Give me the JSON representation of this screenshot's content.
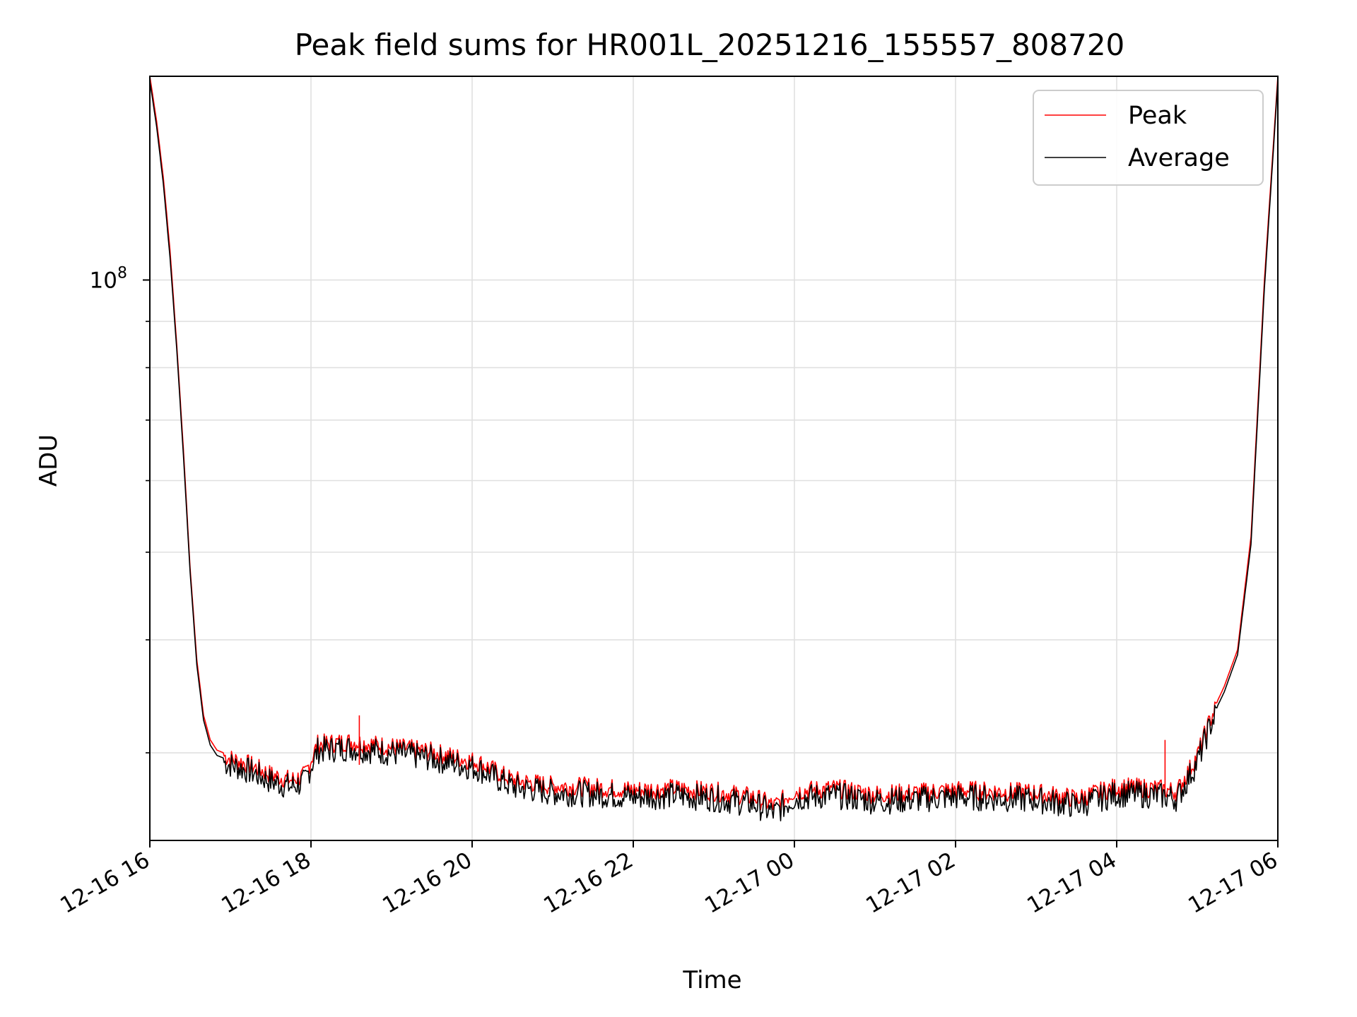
{
  "chart_data": {
    "type": "line",
    "title": "Peak field sums for HR001L_20251216_155557_808720",
    "xlabel": "Time",
    "ylabel": "ADU",
    "yscale": "log",
    "grid": true,
    "legend_position": "top-right",
    "xlim": [
      "12-16 16",
      "12-17 06"
    ],
    "ylim": [
      24000000,
      168000000
    ],
    "x_ticks": [
      "12-16 16",
      "12-16 18",
      "12-16 20",
      "12-16 22",
      "12-17 00",
      "12-17 02",
      "12-17 04",
      "12-17 06"
    ],
    "y_ticks": [
      {
        "value": 100000000,
        "base": "10",
        "exponent": "8"
      }
    ],
    "y_minor_ticks": [
      30000000,
      40000000,
      50000000,
      60000000,
      70000000,
      80000000,
      90000000,
      200000000
    ],
    "x": [
      "12-16 16",
      "12-16 16:05",
      "12-16 16:10",
      "12-16 16:15",
      "12-16 16:20",
      "12-16 16:25",
      "12-16 16:30",
      "12-16 16:35",
      "12-16 16:40",
      "12-16 16:45",
      "12-16 16:50",
      "12-16 17:00",
      "12-16 17:15",
      "12-16 17:30",
      "12-16 17:45",
      "12-16 17:55",
      "12-16 18:05",
      "12-16 18:30",
      "12-16 19:00",
      "12-16 19:30",
      "12-16 20:05",
      "12-16 20:30",
      "12-16 21:00",
      "12-16 21:30",
      "12-16 22:00",
      "12-16 22:30",
      "12-16 23:00",
      "12-16 23:30",
      "12-16 23:45",
      "12-17 00:00",
      "12-17 00:30",
      "12-17 01:00",
      "12-17 01:30",
      "12-17 02:00",
      "12-17 02:30",
      "12-17 03:00",
      "12-17 03:30",
      "12-17 04:00",
      "12-17 04:30",
      "12-17 04:45",
      "12-17 05:00",
      "12-17 05:10",
      "12-17 05:20",
      "12-17 05:30",
      "12-17 05:40",
      "12-17 05:50",
      "12-17 06"
    ],
    "series": [
      {
        "name": "Peak",
        "color": "#ff0000",
        "values": [
          168000000,
          150000000,
          130000000,
          108000000,
          85000000,
          65000000,
          48000000,
          38000000,
          33000000,
          31000000,
          30200000,
          29800000,
          29300000,
          28600000,
          28200000,
          28500000,
          30900000,
          31100000,
          30700000,
          30300000,
          29500000,
          28200000,
          27800000,
          27700000,
          27500000,
          27600000,
          27400000,
          27000000,
          26400000,
          27400000,
          27600000,
          27200000,
          27300000,
          27500000,
          27400000,
          27300000,
          26900000,
          27700000,
          27600000,
          27400000,
          30000000,
          33000000,
          35500000,
          39000000,
          52000000,
          100000000,
          168000000
        ]
      },
      {
        "name": "Average",
        "color": "#000000",
        "values": [
          166000000,
          148000000,
          128000000,
          106000000,
          84000000,
          64000000,
          47500000,
          37500000,
          32600000,
          30600000,
          29800000,
          29400000,
          28900000,
          28200000,
          27800000,
          28100000,
          30500000,
          30700000,
          30300000,
          29900000,
          29100000,
          27800000,
          27400000,
          27300000,
          27100000,
          27200000,
          27000000,
          26600000,
          26000000,
          27000000,
          27200000,
          26800000,
          26900000,
          27100000,
          27000000,
          26900000,
          26500000,
          27300000,
          27200000,
          27000000,
          29600000,
          32600000,
          35000000,
          38500000,
          51000000,
          98000000,
          166000000
        ]
      }
    ],
    "annotations": [
      {
        "x": "12-16 18:36",
        "value": 33000000,
        "series": "Peak"
      },
      {
        "x": "12-17 04:36",
        "value": 31000000,
        "series": "Peak"
      }
    ]
  }
}
